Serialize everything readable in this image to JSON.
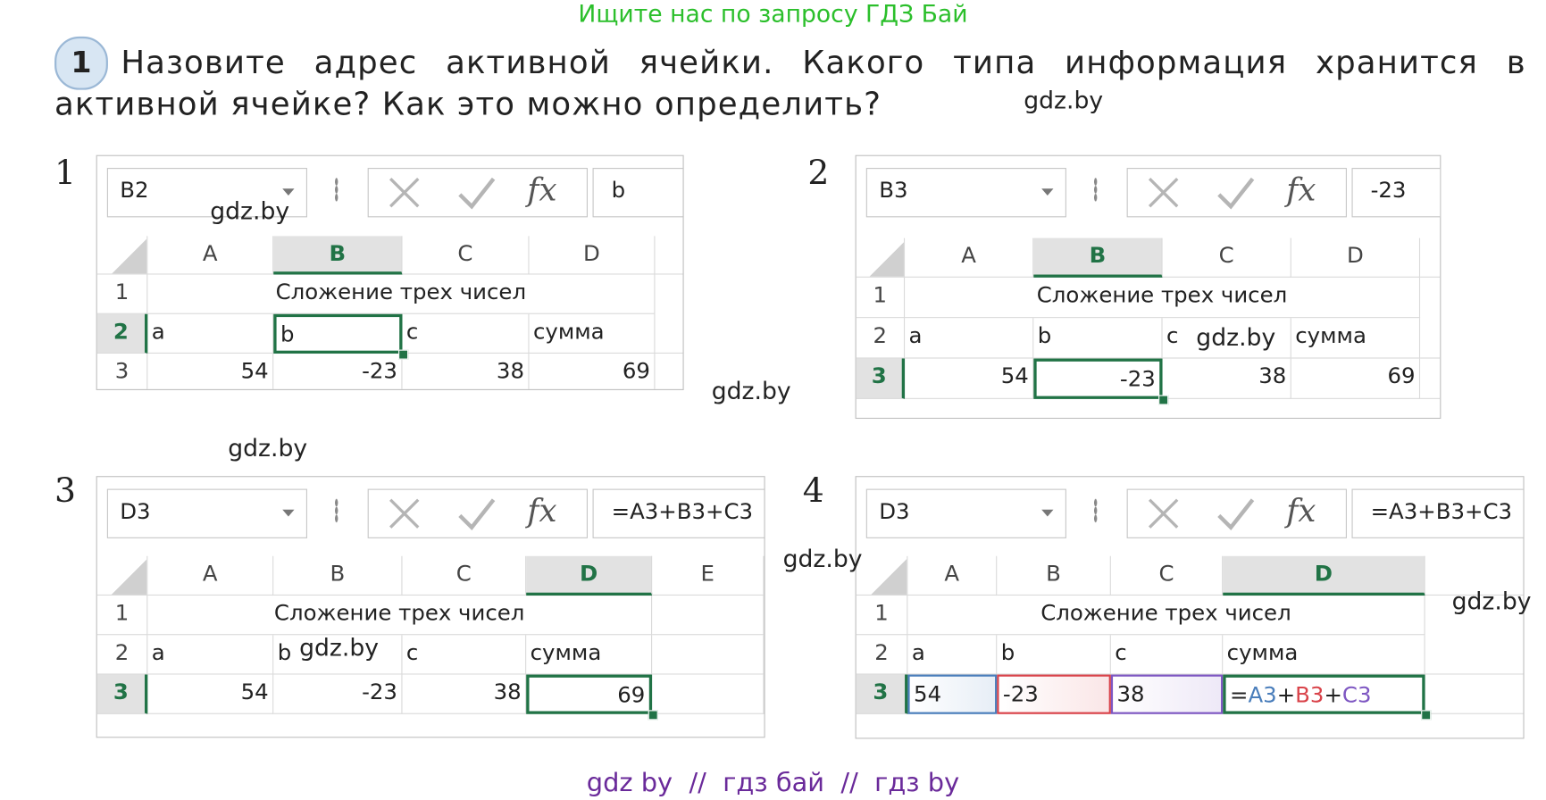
{
  "header": "Ищите нас по запросу ГДЗ Бай",
  "question": {
    "number": "1",
    "text": "Назовите адрес активной ячейки. Какого типа информация хранится в активной ячейке? Как это можно определить?"
  },
  "formula_icon": "fx",
  "panels": [
    {
      "label": "1",
      "name_box": "B2",
      "formula": "b",
      "columns": [
        "A",
        "B",
        "C",
        "D"
      ],
      "rows": [
        {
          "header": "1",
          "cells": [
            "Сложение трех чисел"
          ]
        },
        {
          "header": "2",
          "cells": [
            "a",
            "b",
            "c",
            "сумма"
          ]
        },
        {
          "header": "3",
          "cells": [
            "54",
            "-23",
            "38",
            "69"
          ]
        }
      ]
    },
    {
      "label": "2",
      "name_box": "B3",
      "formula": "-23",
      "columns": [
        "A",
        "B",
        "C",
        "D"
      ],
      "rows": [
        {
          "header": "1",
          "cells": [
            "Сложение трех чисел"
          ]
        },
        {
          "header": "2",
          "cells": [
            "a",
            "b",
            "c",
            "сумма"
          ]
        },
        {
          "header": "3",
          "cells": [
            "54",
            "-23",
            "38",
            "69"
          ]
        }
      ]
    },
    {
      "label": "3",
      "name_box": "D3",
      "formula": "=A3+B3+C3",
      "columns": [
        "A",
        "B",
        "C",
        "D",
        "E"
      ],
      "rows": [
        {
          "header": "1",
          "cells": [
            "Сложение трех чисел"
          ]
        },
        {
          "header": "2",
          "cells": [
            "a",
            "b",
            "c",
            "сумма"
          ]
        },
        {
          "header": "3",
          "cells": [
            "54",
            "-23",
            "38",
            "69"
          ]
        }
      ]
    },
    {
      "label": "4",
      "name_box": "D3",
      "formula": "=A3+B3+C3",
      "columns": [
        "A",
        "B",
        "C",
        "D"
      ],
      "rows": [
        {
          "header": "1",
          "cells": [
            "Сложение трех чисел"
          ]
        },
        {
          "header": "2",
          "cells": [
            "a",
            "b",
            "c",
            "сумма"
          ]
        },
        {
          "header": "3",
          "cells": [
            "54",
            "-23",
            "38",
            [
              "=",
              "A3",
              "+",
              "B3",
              "+",
              "C3"
            ]
          ]
        }
      ]
    }
  ],
  "watermarks": [
    "gdz.by",
    "gdz.by",
    "gdz.by",
    "gdz.by",
    "gdz.by",
    "gdz.by",
    "gdz.by",
    "gdz.by"
  ],
  "footer": "gdz by  //  гдз бай  //  гдз by"
}
